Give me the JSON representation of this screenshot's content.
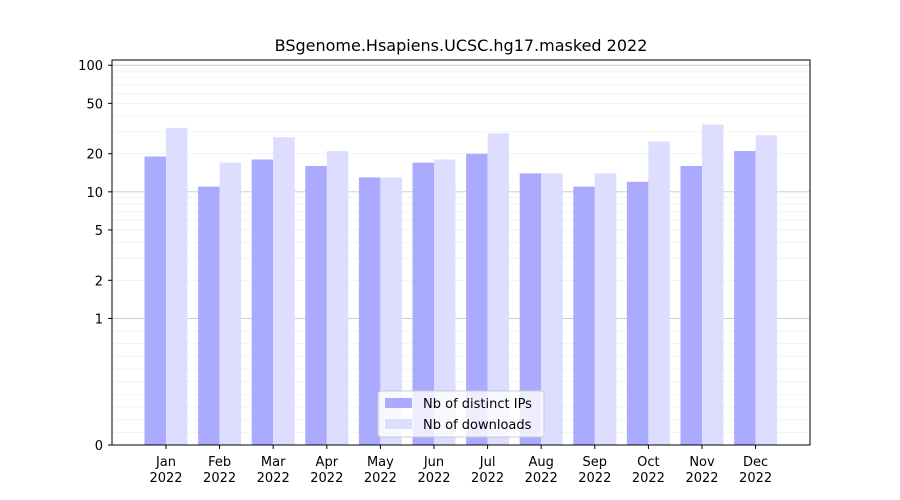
{
  "chart_data": {
    "type": "bar",
    "title": "BSgenome.Hsapiens.UCSC.hg17.masked 2022",
    "xlabel": "",
    "ylabel": "",
    "y_scale": "symlog",
    "ylim": [
      0,
      110
    ],
    "y_ticks": [
      0,
      1,
      2,
      5,
      10,
      20,
      50,
      100
    ],
    "y_tick_labels": [
      "0",
      "1",
      "2",
      "5",
      "10",
      "20",
      "50",
      "100"
    ],
    "categories": [
      [
        "Jan",
        "2022"
      ],
      [
        "Feb",
        "2022"
      ],
      [
        "Mar",
        "2022"
      ],
      [
        "Apr",
        "2022"
      ],
      [
        "May",
        "2022"
      ],
      [
        "Jun",
        "2022"
      ],
      [
        "Jul",
        "2022"
      ],
      [
        "Aug",
        "2022"
      ],
      [
        "Sep",
        "2022"
      ],
      [
        "Oct",
        "2022"
      ],
      [
        "Nov",
        "2022"
      ],
      [
        "Dec",
        "2022"
      ]
    ],
    "series": [
      {
        "name": "Nb of distinct IPs",
        "color": "#aaaaff",
        "values": [
          19,
          11,
          18,
          16,
          13,
          17,
          20,
          14,
          11,
          12,
          16,
          21
        ]
      },
      {
        "name": "Nb of downloads",
        "color": "#ddddff",
        "values": [
          32,
          17,
          27,
          21,
          13,
          18,
          29,
          14,
          14,
          25,
          34,
          28
        ]
      }
    ],
    "grid": true,
    "legend_position": "bottom-center"
  }
}
